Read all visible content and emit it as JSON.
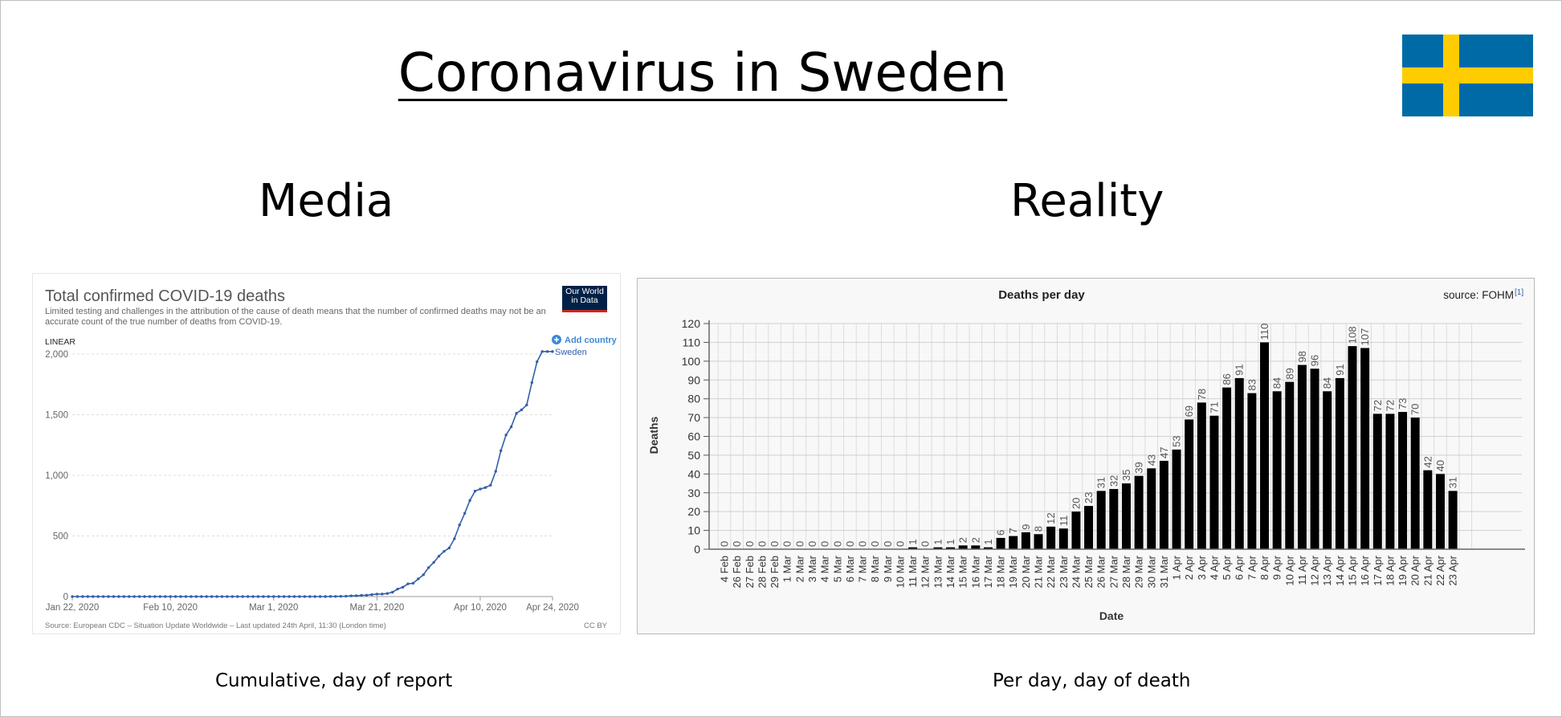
{
  "slide": {
    "title": "Coronavirus in Sweden",
    "left_heading": "Media",
    "right_heading": "Reality",
    "left_caption": "Cumulative, day of report",
    "right_caption": "Per day, day of death",
    "flag_colors": {
      "blue": "#006aa7",
      "yellow": "#fecc00"
    }
  },
  "chart_data": [
    {
      "type": "line",
      "title": "Total confirmed COVID-19 deaths",
      "subtitle": "Limited testing and challenges in the attribution of the cause of death means that the number of confirmed deaths may not be an accurate count of the true number of deaths from COVID-19.",
      "brand": "Our World in Data",
      "scale_label": "LINEAR",
      "add_country": "Add country",
      "source": "Source: European CDC – Situation Update Worldwide – Last updated 24th April, 11:30 (London time)",
      "license": "CC BY",
      "x_tick_labels": [
        "Jan 22, 2020",
        "Feb 10, 2020",
        "Mar 1, 2020",
        "Mar 21, 2020",
        "Apr 10, 2020",
        "Apr 24, 2020"
      ],
      "x_ticks": [
        "2020-01-22",
        "2020-02-10",
        "2020-03-01",
        "2020-03-21",
        "2020-04-10",
        "2020-04-24"
      ],
      "y_ticks": [
        0,
        500,
        1000,
        1500,
        2000
      ],
      "y_tick_labels": [
        "0",
        "500",
        "1,000",
        "1,500",
        "2,000"
      ],
      "ylim": [
        0,
        2000
      ],
      "xlim": [
        "2020-01-22",
        "2020-04-24"
      ],
      "line_color": "#3360a9",
      "series": [
        {
          "name": "Sweden",
          "x": [
            "2020-01-22",
            "2020-01-23",
            "2020-01-24",
            "2020-01-25",
            "2020-01-26",
            "2020-01-27",
            "2020-01-28",
            "2020-01-29",
            "2020-01-30",
            "2020-01-31",
            "2020-02-01",
            "2020-02-02",
            "2020-02-03",
            "2020-02-04",
            "2020-02-05",
            "2020-02-06",
            "2020-02-07",
            "2020-02-08",
            "2020-02-09",
            "2020-02-10",
            "2020-02-11",
            "2020-02-12",
            "2020-02-13",
            "2020-02-14",
            "2020-02-15",
            "2020-02-16",
            "2020-02-17",
            "2020-02-18",
            "2020-02-19",
            "2020-02-20",
            "2020-02-21",
            "2020-02-22",
            "2020-02-23",
            "2020-02-24",
            "2020-02-25",
            "2020-02-26",
            "2020-02-27",
            "2020-02-28",
            "2020-02-29",
            "2020-03-01",
            "2020-03-02",
            "2020-03-03",
            "2020-03-04",
            "2020-03-05",
            "2020-03-06",
            "2020-03-07",
            "2020-03-08",
            "2020-03-09",
            "2020-03-10",
            "2020-03-11",
            "2020-03-12",
            "2020-03-13",
            "2020-03-14",
            "2020-03-15",
            "2020-03-16",
            "2020-03-17",
            "2020-03-18",
            "2020-03-19",
            "2020-03-20",
            "2020-03-21",
            "2020-03-22",
            "2020-03-23",
            "2020-03-24",
            "2020-03-25",
            "2020-03-26",
            "2020-03-27",
            "2020-03-28",
            "2020-03-29",
            "2020-03-30",
            "2020-03-31",
            "2020-04-01",
            "2020-04-02",
            "2020-04-03",
            "2020-04-04",
            "2020-04-05",
            "2020-04-06",
            "2020-04-07",
            "2020-04-08",
            "2020-04-09",
            "2020-04-10",
            "2020-04-11",
            "2020-04-12",
            "2020-04-13",
            "2020-04-14",
            "2020-04-15",
            "2020-04-16",
            "2020-04-17",
            "2020-04-18",
            "2020-04-19",
            "2020-04-20",
            "2020-04-21",
            "2020-04-22",
            "2020-04-23",
            "2020-04-24"
          ],
          "y": [
            0,
            0,
            0,
            0,
            0,
            0,
            0,
            0,
            0,
            0,
            0,
            0,
            0,
            0,
            0,
            0,
            0,
            0,
            0,
            0,
            0,
            0,
            0,
            0,
            0,
            0,
            0,
            0,
            0,
            0,
            0,
            0,
            0,
            0,
            0,
            0,
            0,
            0,
            0,
            0,
            0,
            0,
            0,
            0,
            0,
            0,
            0,
            0,
            0,
            0,
            1,
            1,
            2,
            3,
            6,
            7,
            10,
            11,
            16,
            20,
            21,
            25,
            36,
            62,
            77,
            105,
            110,
            146,
            180,
            239,
            282,
            333,
            373,
            401,
            477,
            591,
            687,
            793,
            870,
            887,
            899,
            919,
            1033,
            1203,
            1333,
            1400,
            1511,
            1540,
            1580,
            1765,
            1937,
            2021,
            2021,
            2021
          ]
        }
      ]
    },
    {
      "type": "bar",
      "title": "Deaths per day",
      "source_label": "source: FOHM",
      "source_ref": "[1]",
      "xlabel": "Date",
      "ylabel": "Deaths",
      "ylim": [
        0,
        120
      ],
      "y_ticks": [
        0,
        10,
        20,
        30,
        40,
        50,
        60,
        70,
        80,
        90,
        100,
        110,
        120
      ],
      "bar_color": "#000000",
      "categories": [
        "4 Feb",
        "26 Feb",
        "27 Feb",
        "28 Feb",
        "29 Feb",
        "1 Mar",
        "2 Mar",
        "3 Mar",
        "4 Mar",
        "5 Mar",
        "6 Mar",
        "7 Mar",
        "8 Mar",
        "9 Mar",
        "10 Mar",
        "11 Mar",
        "12 Mar",
        "13 Mar",
        "14 Mar",
        "15 Mar",
        "16 Mar",
        "17 Mar",
        "18 Mar",
        "19 Mar",
        "20 Mar",
        "21 Mar",
        "22 Mar",
        "23 Mar",
        "24 Mar",
        "25 Mar",
        "26 Mar",
        "27 Mar",
        "28 Mar",
        "29 Mar",
        "30 Mar",
        "31 Mar",
        "1 Apr",
        "2 Apr",
        "3 Apr",
        "4 Apr",
        "5 Apr",
        "6 Apr",
        "7 Apr",
        "8 Apr",
        "9 Apr",
        "10 Apr",
        "11 Apr",
        "12 Apr",
        "13 Apr",
        "14 Apr",
        "15 Apr",
        "16 Apr",
        "17 Apr",
        "18 Apr",
        "19 Apr",
        "20 Apr",
        "21 Apr",
        "22 Apr",
        "23 Apr"
      ],
      "values": [
        0,
        0,
        0,
        0,
        0,
        0,
        0,
        0,
        0,
        0,
        0,
        0,
        0,
        0,
        0,
        1,
        0,
        1,
        1,
        2,
        2,
        1,
        6,
        7,
        9,
        8,
        12,
        11,
        20,
        23,
        31,
        32,
        35,
        39,
        43,
        47,
        53,
        69,
        78,
        71,
        86,
        91,
        83,
        110,
        84,
        89,
        98,
        96,
        84,
        91,
        108,
        107,
        72,
        72,
        73,
        70,
        42,
        40,
        31
      ]
    }
  ]
}
